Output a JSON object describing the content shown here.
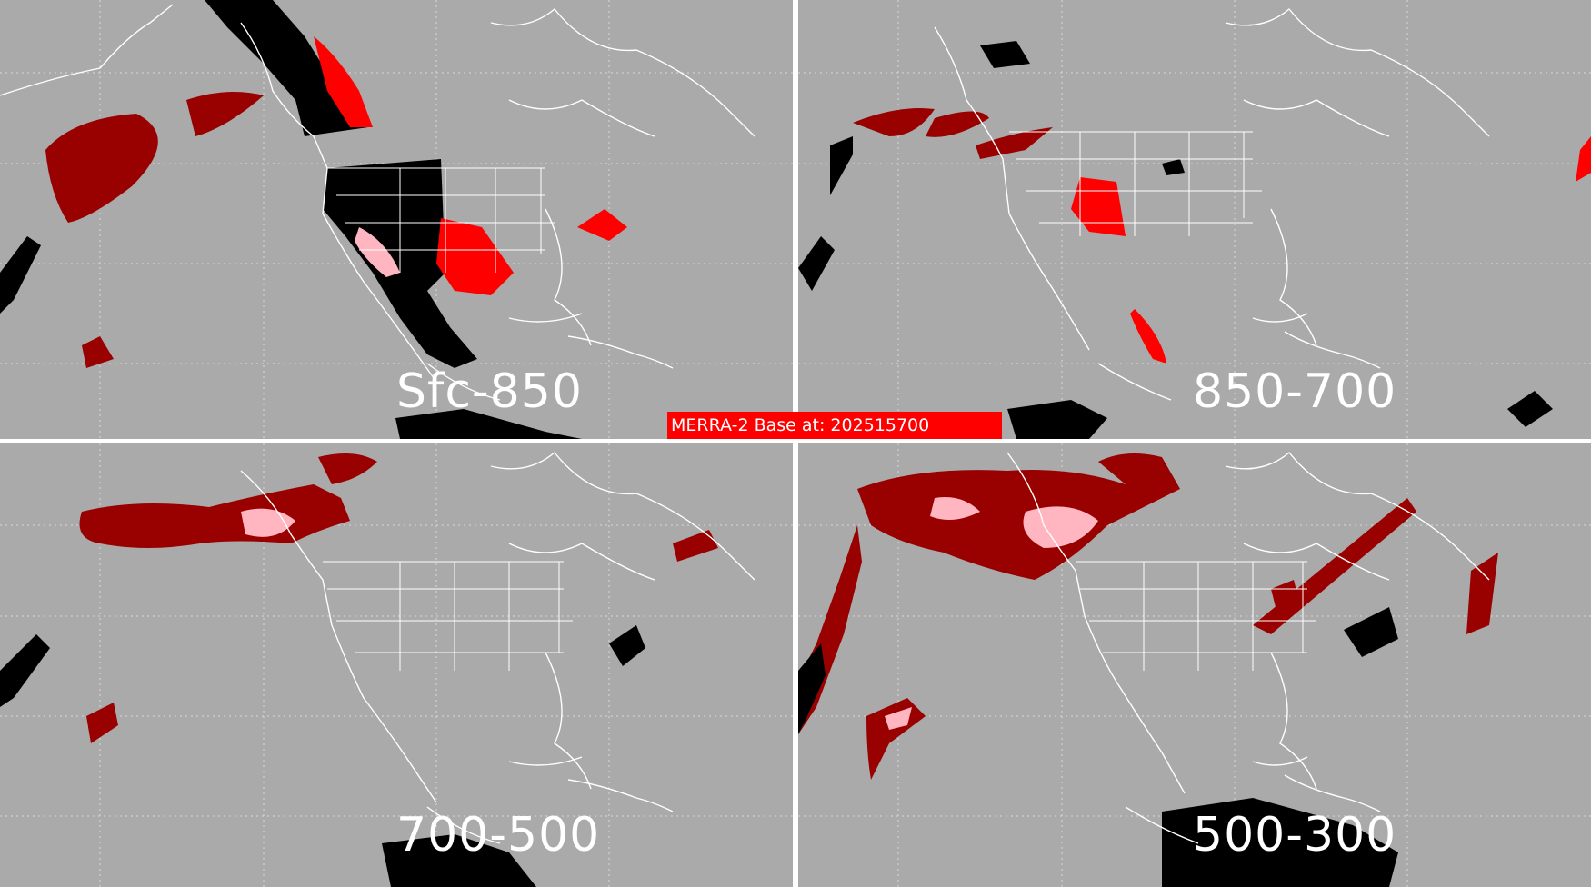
{
  "figure": {
    "base_banner": "MERRA-2 Base at: 202515700",
    "colors": {
      "background": "#aaaaaa",
      "coast_and_borders": "#ffffff",
      "gridlines": "#d8d8d8",
      "black": "#000000",
      "dark_red": "#990000",
      "red": "#ff0000",
      "pink": "#ffb6c1",
      "banner": "#ff0000"
    },
    "panels": [
      {
        "label": "Sfc-850"
      },
      {
        "label": "850-700"
      },
      {
        "label": "700-500"
      },
      {
        "label": "500-300"
      }
    ]
  }
}
